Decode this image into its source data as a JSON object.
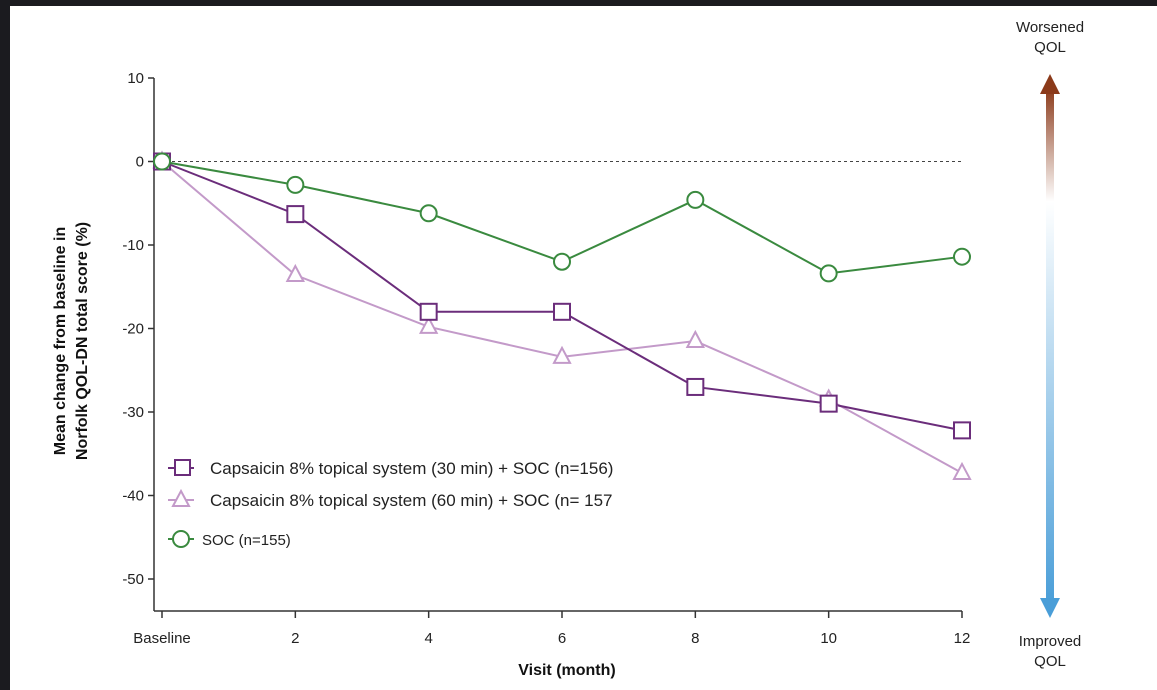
{
  "chart_data": {
    "type": "line",
    "xlabel": "Visit (month)",
    "ylabel_line1": "Mean change from baseline in",
    "ylabel_line2": "Norfolk QOL-DN total score (%)",
    "categories": [
      "Baseline",
      "2",
      "4",
      "6",
      "8",
      "10",
      "12"
    ],
    "ylim": [
      -53,
      10
    ],
    "yticks": [
      10,
      0,
      -10,
      -20,
      -30,
      -40,
      -50
    ],
    "ytick_labels": [
      "10",
      "0",
      "-10",
      "-20",
      "-30",
      "-40",
      "-50"
    ],
    "reference_line": 0,
    "series": [
      {
        "name": "Capsaicin 8% topical system (30 min) + SOC (n=156)",
        "marker": "square",
        "color": "#6b2d7b",
        "values": [
          0,
          -6.3,
          -18.0,
          -18.0,
          -27.0,
          -29.0,
          -32.2
        ]
      },
      {
        "name": "Capsaicin 8% topical system (60 min) + SOC (n= 157",
        "marker": "triangle",
        "color": "#c39ac9",
        "values": [
          0,
          -13.6,
          -19.8,
          -23.4,
          -21.5,
          -28.5,
          -37.3
        ]
      },
      {
        "name": "SOC (n=155)",
        "marker": "circle",
        "color": "#3a8a3f",
        "values": [
          0,
          -2.8,
          -6.2,
          -12.0,
          -4.6,
          -13.4,
          -11.4
        ]
      }
    ],
    "legend_position": "bottom-left",
    "annotations": {
      "top_line1": "Worsened",
      "top_line2": "QOL",
      "bottom_line1": "Improved",
      "bottom_line2": "QOL",
      "arrow_top_color": "#8b3a1a",
      "arrow_bottom_color": "#4a9ed8"
    }
  }
}
